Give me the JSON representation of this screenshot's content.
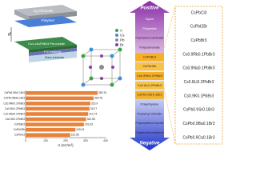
{
  "device": {
    "layers": [
      "Ag electrode",
      "Polymer",
      "Cs1-xAxPbBr3 Perovskite",
      "FTO electrode",
      "Glass substrate"
    ],
    "gap_label": "d"
  },
  "crystal": {
    "legend": [
      "A",
      "Cs",
      "Pb",
      "Br"
    ]
  },
  "series": {
    "positive": "Positive",
    "negative": "Negative",
    "items": [
      {
        "text": "Nylon",
        "highlight": false
      },
      {
        "text": "Polyimide",
        "highlight": false
      },
      {
        "text": "Polyethylene terephthalate",
        "highlight": false
      },
      {
        "text": "Polycarbonate",
        "highlight": false
      },
      {
        "text": "CsPbBr3",
        "highlight": true
      },
      {
        "text": "CsPbI2Br",
        "highlight": true
      },
      {
        "text": "Cs0.9Rb0.1PbBr3",
        "highlight": true
      },
      {
        "text": "Cs0.8Li0.2PbBr3",
        "highlight": true
      },
      {
        "text": "CsPb0.9Sr0.1Br3",
        "highlight": true
      },
      {
        "text": "Polyethylene",
        "highlight": false
      },
      {
        "text": "Polyvinyl chloride",
        "highlight": false
      },
      {
        "text": "Polyvinylidene fluoride",
        "highlight": false
      },
      {
        "text": "Polytetra fluoroethylene",
        "highlight": false
      }
    ]
  },
  "perovskites": [
    "CsPbCl3",
    "CsPbI2Br",
    "CsPbBr3",
    "Cs0.9Rb0.1PbBr3",
    "Cs0.9Na0.1PbBr3",
    "Cs0.8Li0.2PbBr3",
    "Cs0.9K0.1PbBr3",
    "CsPb0.9Sr0.1Br3",
    "CsPb0.9Ba0.1Br3",
    "CsPb0.9Ca0.1Br3"
  ],
  "chart_data": {
    "type": "bar",
    "categories": [
      "CsPb0.9Sr0.1Br3",
      "CsPb0.9Ba0.1Br3",
      "Cs0.9Rb0.1PbBr3",
      "Cs0.8Li0.2PbBr3",
      "Cs0.9Na0.1PbBr3",
      "Cs0.9K0.1PbBr3",
      "CsPbBr3",
      "CsPbI2Br",
      "CsPbCl3"
    ],
    "values": [
      359.76,
      339.78,
      323.9,
      319.7,
      312.74,
      302.58,
      291.63,
      249.04,
      222.56
    ],
    "color": "#e8823a",
    "xlim": [
      0,
      400
    ],
    "xticks": [
      0,
      100,
      200,
      300,
      400
    ],
    "xlabel": "σ (nC/m²)"
  }
}
